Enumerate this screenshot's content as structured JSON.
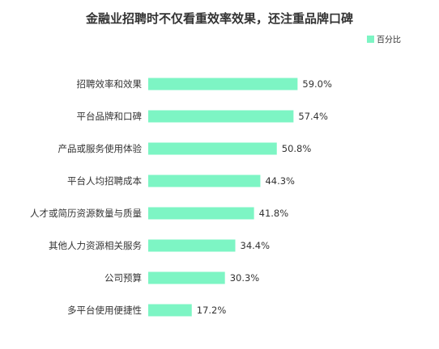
{
  "chart_data": {
    "type": "bar",
    "orientation": "horizontal",
    "title": "金融业招聘时不仅看重效率效果，还注重品牌口碑",
    "legend": {
      "position": "top-right",
      "label": "百分比"
    },
    "categories": [
      "招聘效率和效果",
      "平台品牌和口碑",
      "产品或服务使用体验",
      "平台人均招聘成本",
      "人才或简历资源数量与质量",
      "其他人力资源相关服务",
      "公司预算",
      "多平台使用便捷性"
    ],
    "series": [
      {
        "name": "百分比",
        "color": "#7df5c4",
        "values": [
          59.0,
          57.4,
          50.8,
          44.3,
          41.8,
          34.4,
          30.3,
          17.2
        ],
        "labels": [
          "59.0%",
          "57.4%",
          "50.8%",
          "44.3%",
          "41.8%",
          "34.4%",
          "30.3%",
          "17.2%"
        ]
      }
    ],
    "xlim": [
      0,
      100
    ],
    "grid": false
  }
}
